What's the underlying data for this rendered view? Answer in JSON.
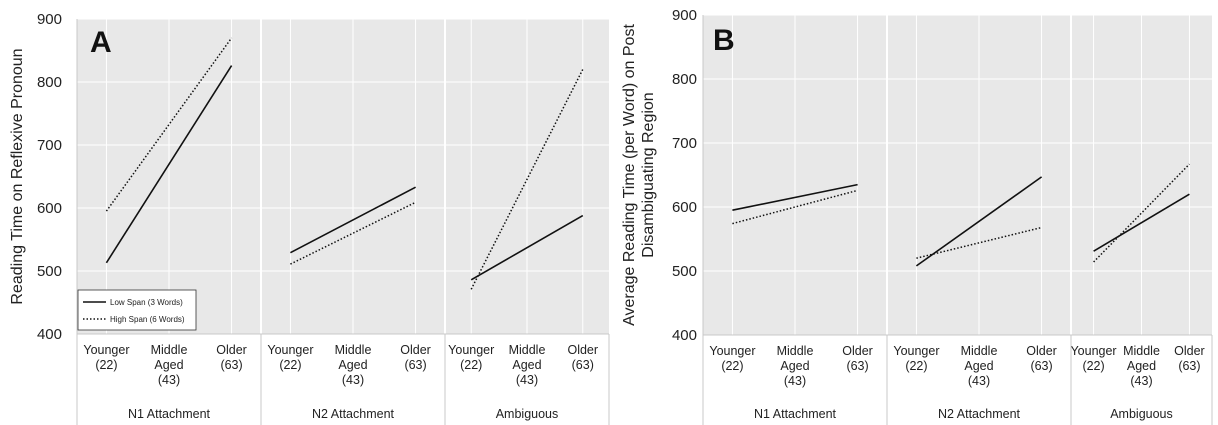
{
  "chart_data": [
    {
      "type": "line",
      "panel_label": "A",
      "ylabel": "Reading Time on Reflexive Pronoun",
      "ylim": [
        400,
        900
      ],
      "yticks": [
        "900",
        "800",
        "700",
        "600",
        "500",
        "400"
      ],
      "groups": [
        {
          "name": "N1 Attachment",
          "categories": [
            {
              "lines": [
                "Younger",
                "(22)"
              ]
            },
            {
              "lines": [
                "Middle",
                "Aged",
                "(43)"
              ]
            },
            {
              "lines": [
                "Older",
                "(63)"
              ]
            }
          ],
          "series": [
            {
              "name": "Low Span (3 Words)",
              "values": [
                513,
                null,
                826
              ]
            },
            {
              "name": "High Span (6 Words)",
              "values": [
                595,
                null,
                870
              ]
            }
          ]
        },
        {
          "name": "N2 Attachment",
          "categories": [
            {
              "lines": [
                "Younger",
                "(22)"
              ]
            },
            {
              "lines": [
                "Middle",
                "Aged",
                "(43)"
              ]
            },
            {
              "lines": [
                "Older",
                "(63)"
              ]
            }
          ],
          "series": [
            {
              "name": "Low Span (3 Words)",
              "values": [
                529,
                null,
                633
              ]
            },
            {
              "name": "High Span (6 Words)",
              "values": [
                511,
                null,
                609
              ]
            }
          ]
        },
        {
          "name": "Ambiguous",
          "categories": [
            {
              "lines": [
                "Younger",
                "(22)"
              ]
            },
            {
              "lines": [
                "Middle",
                "Aged",
                "(43)"
              ]
            },
            {
              "lines": [
                "Older",
                "(63)"
              ]
            }
          ],
          "series": [
            {
              "name": "Low Span (3 Words)",
              "values": [
                486,
                null,
                588
              ]
            },
            {
              "name": "High Span (6 Words)",
              "values": [
                471,
                null,
                820
              ]
            }
          ]
        }
      ],
      "legend": {
        "position": "bottom-left",
        "entries": [
          {
            "label": "Low Span (3 Words)",
            "style": "solid"
          },
          {
            "label": "High Span (6 Words)",
            "style": "dotted"
          }
        ]
      },
      "grid": true
    },
    {
      "type": "line",
      "panel_label": "B",
      "ylabel": [
        "Average Reading Time (per Word) on Post",
        "Disambiguating Region"
      ],
      "ylim": [
        400,
        900
      ],
      "yticks": [
        "900",
        "800",
        "700",
        "600",
        "500",
        "400"
      ],
      "groups": [
        {
          "name": "N1 Attachment",
          "categories": [
            {
              "lines": [
                "Younger",
                "(22)"
              ]
            },
            {
              "lines": [
                "Middle",
                "Aged",
                "(43)"
              ]
            },
            {
              "lines": [
                "Older",
                "(63)"
              ]
            }
          ],
          "series": [
            {
              "name": "Low Span (3 Words)",
              "values": [
                595,
                null,
                635
              ]
            },
            {
              "name": "High Span (6 Words)",
              "values": [
                574,
                null,
                626
              ]
            }
          ]
        },
        {
          "name": "N2 Attachment",
          "categories": [
            {
              "lines": [
                "Younger",
                "(22)"
              ]
            },
            {
              "lines": [
                "Middle",
                "Aged",
                "(43)"
              ]
            },
            {
              "lines": [
                "Older",
                "(63)"
              ]
            }
          ],
          "series": [
            {
              "name": "Low Span (3 Words)",
              "values": [
                508,
                null,
                647
              ]
            },
            {
              "name": "High Span (6 Words)",
              "values": [
                520,
                null,
                568
              ]
            }
          ]
        },
        {
          "name": "Ambiguous",
          "categories": [
            {
              "lines": [
                "Younger",
                "(22)"
              ]
            },
            {
              "lines": [
                "Middle",
                "Aged",
                "(43)"
              ]
            },
            {
              "lines": [
                "Older",
                "(63)"
              ]
            }
          ],
          "series": [
            {
              "name": "Low Span (3 Words)",
              "values": [
                531,
                null,
                620
              ]
            },
            {
              "name": "High Span (6 Words)",
              "values": [
                514,
                null,
                667
              ]
            }
          ]
        }
      ],
      "grid": true
    }
  ]
}
